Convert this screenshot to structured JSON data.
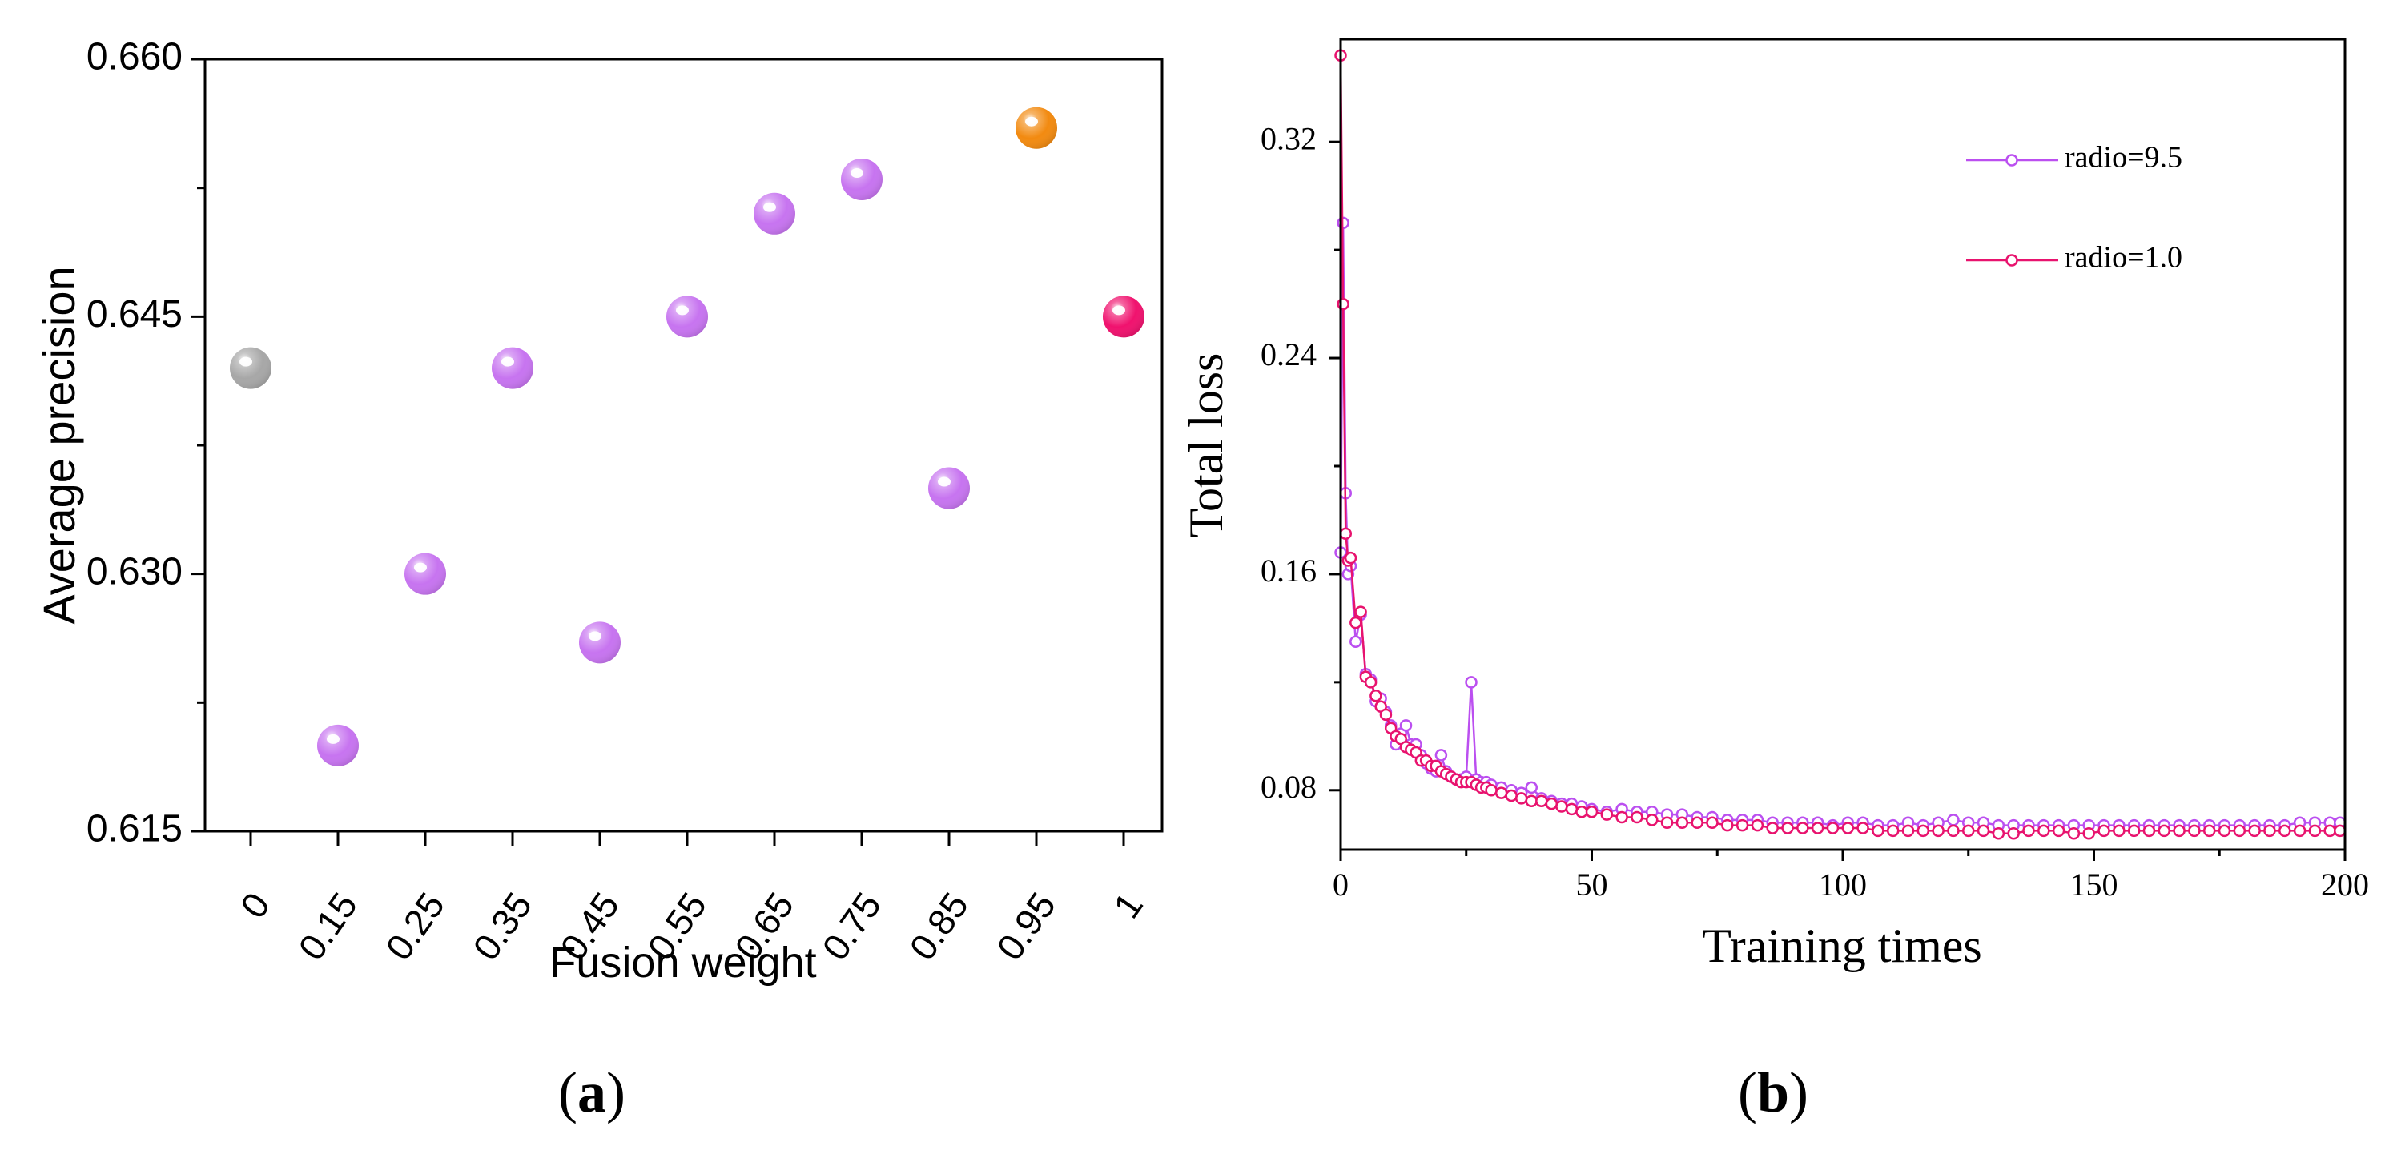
{
  "chart_data": [
    {
      "id": "a",
      "type": "scatter",
      "panel_label": "a",
      "xlabel": "Fusion weight",
      "ylabel": "Average precision",
      "categories": [
        "0",
        "0.15",
        "0.25",
        "0.35",
        "0.45",
        "0.55",
        "0.65",
        "0.75",
        "0.85",
        "0.95",
        "1"
      ],
      "values": [
        0.642,
        0.62,
        0.63,
        0.642,
        0.626,
        0.645,
        0.651,
        0.653,
        0.635,
        0.656,
        0.645
      ],
      "point_colors": [
        "#a7a7a7",
        "#c774f0",
        "#c774f0",
        "#c774f0",
        "#c774f0",
        "#c774f0",
        "#c774f0",
        "#c774f0",
        "#c774f0",
        "#f28a10",
        "#f0126e"
      ],
      "ylim": [
        0.615,
        0.66
      ],
      "yticks": [
        0.615,
        0.63,
        0.645,
        0.66
      ],
      "ytick_labels": [
        "0.615",
        "0.630",
        "0.645",
        "0.660"
      ]
    },
    {
      "id": "b",
      "type": "line",
      "panel_label": "b",
      "xlabel": "Training times",
      "ylabel": "Total loss",
      "xlim": [
        0,
        200
      ],
      "ylim": [
        0.058,
        0.358
      ],
      "xticks": [
        0,
        50,
        100,
        150,
        200
      ],
      "xtick_labels": [
        "0",
        "50",
        "100",
        "150",
        "200"
      ],
      "yticks": [
        0.08,
        0.16,
        0.24,
        0.32
      ],
      "ytick_labels": [
        "0.08",
        "0.16",
        "0.24",
        "0.32"
      ],
      "legend_position": "top-right",
      "series": [
        {
          "name": "radio=9.5",
          "color": "#bb4ff0",
          "x": [
            0,
            0.5,
            1,
            1.5,
            2,
            3,
            4,
            5,
            6,
            7,
            8,
            9,
            10,
            11,
            12,
            13,
            14,
            15,
            16,
            17,
            18,
            19,
            20,
            21,
            22,
            23,
            24,
            25,
            26,
            27,
            28,
            29,
            30,
            32,
            34,
            36,
            38,
            40,
            42,
            44,
            46,
            48,
            50,
            53,
            56,
            59,
            62,
            65,
            68,
            71,
            74,
            77,
            80,
            83,
            86,
            89,
            92,
            95,
            98,
            101,
            104,
            107,
            110,
            113,
            116,
            119,
            122,
            125,
            128,
            131,
            134,
            137,
            140,
            143,
            146,
            149,
            152,
            155,
            158,
            161,
            164,
            167,
            170,
            173,
            176,
            179,
            182,
            185,
            188,
            191,
            194,
            197,
            199
          ],
          "y": [
            0.168,
            0.29,
            0.19,
            0.16,
            0.163,
            0.135,
            0.145,
            0.123,
            0.121,
            0.113,
            0.114,
            0.109,
            0.104,
            0.097,
            0.101,
            0.104,
            0.097,
            0.097,
            0.093,
            0.09,
            0.088,
            0.087,
            0.093,
            0.087,
            0.085,
            0.084,
            0.084,
            0.085,
            0.12,
            0.084,
            0.083,
            0.083,
            0.082,
            0.081,
            0.08,
            0.079,
            0.081,
            0.077,
            0.076,
            0.075,
            0.075,
            0.074,
            0.073,
            0.072,
            0.073,
            0.072,
            0.072,
            0.071,
            0.071,
            0.07,
            0.07,
            0.069,
            0.069,
            0.069,
            0.068,
            0.068,
            0.068,
            0.068,
            0.067,
            0.068,
            0.068,
            0.067,
            0.067,
            0.068,
            0.067,
            0.068,
            0.069,
            0.068,
            0.068,
            0.067,
            0.067,
            0.067,
            0.067,
            0.067,
            0.067,
            0.067,
            0.067,
            0.067,
            0.067,
            0.067,
            0.067,
            0.067,
            0.067,
            0.067,
            0.067,
            0.067,
            0.067,
            0.067,
            0.067,
            0.068,
            0.068,
            0.068,
            0.068
          ]
        },
        {
          "name": "radio=1.0",
          "color": "#e8136e",
          "x": [
            0,
            0.5,
            1,
            1.5,
            2,
            3,
            4,
            5,
            6,
            7,
            8,
            9,
            10,
            11,
            12,
            13,
            14,
            15,
            16,
            17,
            18,
            19,
            20,
            21,
            22,
            23,
            24,
            25,
            26,
            27,
            28,
            29,
            30,
            32,
            34,
            36,
            38,
            40,
            42,
            44,
            46,
            48,
            50,
            53,
            56,
            59,
            62,
            65,
            68,
            71,
            74,
            77,
            80,
            83,
            86,
            89,
            92,
            95,
            98,
            101,
            104,
            107,
            110,
            113,
            116,
            119,
            122,
            125,
            128,
            131,
            134,
            137,
            140,
            143,
            146,
            149,
            152,
            155,
            158,
            161,
            164,
            167,
            170,
            173,
            176,
            179,
            182,
            185,
            188,
            191,
            194,
            197,
            199
          ],
          "y": [
            0.352,
            0.26,
            0.175,
            0.165,
            0.166,
            0.142,
            0.146,
            0.122,
            0.12,
            0.115,
            0.111,
            0.108,
            0.103,
            0.1,
            0.099,
            0.096,
            0.095,
            0.094,
            0.091,
            0.091,
            0.089,
            0.089,
            0.087,
            0.086,
            0.085,
            0.084,
            0.083,
            0.083,
            0.083,
            0.082,
            0.081,
            0.081,
            0.08,
            0.079,
            0.078,
            0.077,
            0.076,
            0.076,
            0.075,
            0.074,
            0.073,
            0.072,
            0.072,
            0.071,
            0.07,
            0.07,
            0.069,
            0.068,
            0.068,
            0.068,
            0.068,
            0.067,
            0.067,
            0.067,
            0.066,
            0.066,
            0.066,
            0.066,
            0.066,
            0.066,
            0.066,
            0.065,
            0.065,
            0.065,
            0.065,
            0.065,
            0.065,
            0.065,
            0.065,
            0.064,
            0.064,
            0.065,
            0.065,
            0.065,
            0.064,
            0.064,
            0.065,
            0.065,
            0.065,
            0.065,
            0.065,
            0.065,
            0.065,
            0.065,
            0.065,
            0.065,
            0.065,
            0.065,
            0.065,
            0.065,
            0.065,
            0.065,
            0.065
          ]
        }
      ]
    }
  ]
}
